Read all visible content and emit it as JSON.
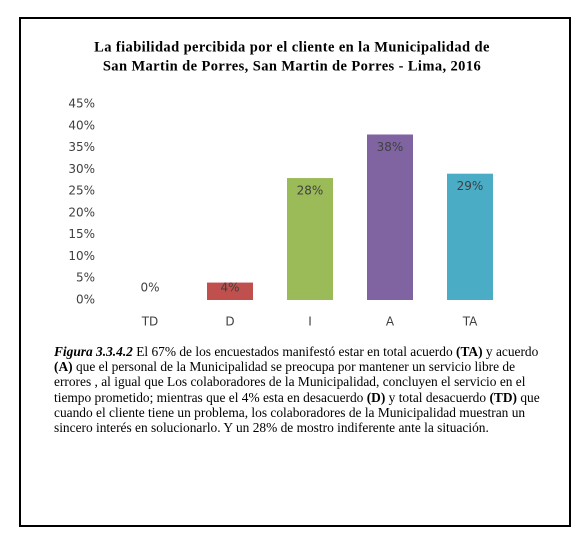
{
  "chart_data": {
    "type": "bar",
    "title": [
      "La fiabilidad percibida por el cliente en la Municipalidad de",
      "San Martin de Porres, San Martin de Porres - Lima, 2016"
    ],
    "categories": [
      "TD",
      "D",
      "I",
      "A",
      "TA"
    ],
    "values": [
      0,
      4,
      28,
      38,
      29
    ],
    "value_labels": [
      "0%",
      "4%",
      "28%",
      "38%",
      "29%"
    ],
    "colors": [
      "#c0504d",
      "#c0504d",
      "#9bbb59",
      "#8064a2",
      "#4bacc6"
    ],
    "ylim": [
      0,
      45
    ],
    "yticks": [
      {
        "value": 0,
        "label": "0%"
      },
      {
        "value": 5,
        "label": "5%"
      },
      {
        "value": 10,
        "label": "10%"
      },
      {
        "value": 15,
        "label": "15%"
      },
      {
        "value": 20,
        "label": "20%"
      },
      {
        "value": 25,
        "label": "25%"
      },
      {
        "value": 30,
        "label": "30%"
      },
      {
        "value": 35,
        "label": "35%"
      },
      {
        "value": 40,
        "label": "40%"
      },
      {
        "value": 45,
        "label": "45%"
      }
    ],
    "grid": false
  },
  "caption": [
    {
      "text": "Figura 3.3.4.2",
      "style": "bi"
    },
    {
      "text": " El 67% de los encuestados manifestó estar en total acuerdo ",
      "style": "n"
    },
    {
      "text": "(TA)",
      "style": "b"
    },
    {
      "text": " y acuerdo ",
      "style": "n"
    },
    {
      "text": "(A)",
      "style": "b"
    },
    {
      "text": " que el personal de la Municipalidad se preocupa por mantener un servicio libre de errores , al igual que Los colaboradores de la Municipalidad, concluyen el servicio en el tiempo prometido; mientras que el 4% esta en desacuerdo ",
      "style": "n"
    },
    {
      "text": "(D)",
      "style": "b"
    },
    {
      "text": " y total desacuerdo ",
      "style": "n"
    },
    {
      "text": "(TD)",
      "style": "b"
    },
    {
      "text": " que cuando el cliente tiene un problema, los colaboradores de la Municipalidad muestran un sincero interés en solucionarlo. Y un 28% de mostro indiferente ante la situación.",
      "style": "n"
    }
  ]
}
